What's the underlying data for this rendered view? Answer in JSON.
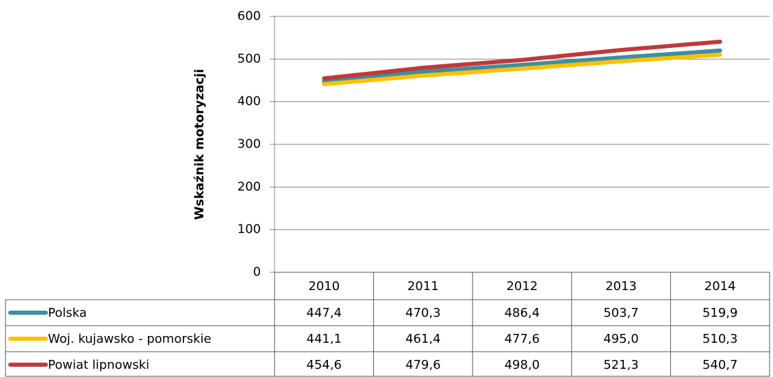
{
  "chart_data": {
    "type": "line",
    "y_label": "Wskaźnik motoryzacji",
    "categories": [
      "2010",
      "2011",
      "2012",
      "2013",
      "2014"
    ],
    "series": [
      {
        "name": "Polska",
        "color": "#3b8fa4",
        "values": [
          447.4,
          470.3,
          486.4,
          503.7,
          519.9
        ],
        "value_labels": [
          "447,4",
          "470,3",
          "486,4",
          "503,7",
          "519,9"
        ]
      },
      {
        "name": "Woj. kujawsko - pomorskie",
        "color": "#ffc000",
        "values": [
          441.1,
          461.4,
          477.6,
          495.0,
          510.3
        ],
        "value_labels": [
          "441,1",
          "461,4",
          "477,6",
          "495,0",
          "510,3"
        ]
      },
      {
        "name": "Powiat lipnowski",
        "color": "#c0393b",
        "values": [
          454.6,
          479.6,
          498.0,
          521.3,
          540.7
        ],
        "value_labels": [
          "454,6",
          "479,6",
          "498,0",
          "521,3",
          "540,7"
        ]
      }
    ],
    "ylim": [
      0,
      600
    ],
    "yticks": [
      0,
      100,
      200,
      300,
      400,
      500,
      600
    ],
    "grid": true,
    "legend": "table"
  }
}
